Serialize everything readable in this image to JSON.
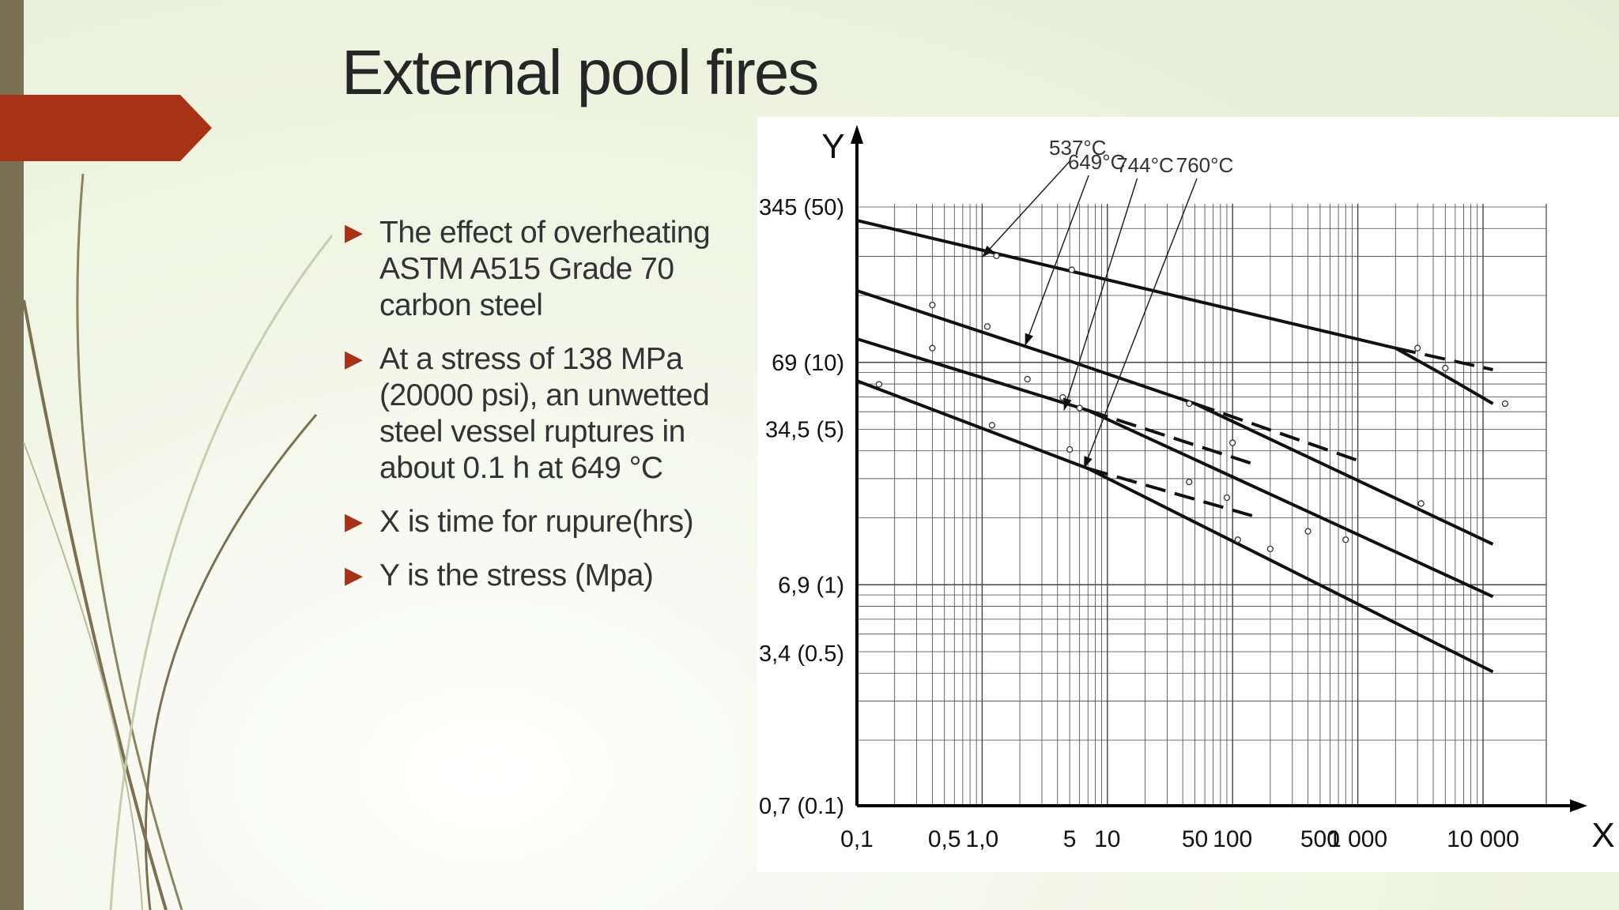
{
  "slide": {
    "title": "External pool fires",
    "bullets": [
      "The effect of overheating ASTM A515 Grade 70 carbon steel",
      "At a stress of 138 MPa (20000 psi), an unwetted steel vessel ruptures in about 0.1 h at 649 °C",
      "X is time for rupure(hrs)",
      "Y is the stress (Mpa)"
    ],
    "bullet_glyph": "▶",
    "colors": {
      "accent": "#a73216",
      "sidebar": "#7a7154",
      "text": "#333333"
    }
  },
  "chart_data": {
    "type": "line",
    "title": "",
    "xlabel": "X",
    "ylabel": "Y",
    "xscale": "log",
    "yscale": "log",
    "xlim": [
      0.1,
      20000
    ],
    "ylim": [
      0.7,
      345
    ],
    "grid": true,
    "x_ticks": [
      {
        "v": 0.1,
        "label": "0,1"
      },
      {
        "v": 0.5,
        "label": "0,5"
      },
      {
        "v": 1,
        "label": "1,0"
      },
      {
        "v": 5,
        "label": "5"
      },
      {
        "v": 10,
        "label": "10"
      },
      {
        "v": 50,
        "label": "50"
      },
      {
        "v": 100,
        "label": "100"
      },
      {
        "v": 500,
        "label": "500"
      },
      {
        "v": 1000,
        "label": "1 000"
      },
      {
        "v": 10000,
        "label": "10 000"
      }
    ],
    "y_ticks": [
      {
        "v": 345,
        "label": "345 (50)"
      },
      {
        "v": 69,
        "label": "69 (10)"
      },
      {
        "v": 34.5,
        "label": "34,5 (5)"
      },
      {
        "v": 6.9,
        "label": "6,9 (1)"
      },
      {
        "v": 3.4,
        "label": "3,4 (0.5)"
      },
      {
        "v": 0.7,
        "label": "0,7 (0.1)"
      }
    ],
    "series": [
      {
        "name": "537°C",
        "style": "solid",
        "points": [
          [
            0.1,
            300
          ],
          [
            2000,
            80
          ],
          [
            4500,
            62
          ],
          [
            12000,
            45
          ]
        ]
      },
      {
        "name": "537°C",
        "style": "dashed",
        "points": [
          [
            2000,
            80
          ],
          [
            12000,
            64
          ]
        ]
      },
      {
        "name": "649°C",
        "style": "solid",
        "points": [
          [
            0.1,
            145
          ],
          [
            5,
            70
          ],
          [
            50,
            45
          ],
          [
            12000,
            10.5
          ]
        ]
      },
      {
        "name": "649°C",
        "style": "dashed",
        "points": [
          [
            50,
            45
          ],
          [
            1000,
            25
          ]
        ]
      },
      {
        "name": "744°C",
        "style": "solid",
        "points": [
          [
            0.1,
            88
          ],
          [
            7,
            42
          ],
          [
            12000,
            6.1
          ]
        ]
      },
      {
        "name": "744°C",
        "style": "dashed",
        "points": [
          [
            7,
            42
          ],
          [
            150,
            24
          ]
        ]
      },
      {
        "name": "760°C",
        "style": "solid",
        "points": [
          [
            0.1,
            57
          ],
          [
            7,
            23
          ],
          [
            12000,
            2.8
          ]
        ]
      },
      {
        "name": "760°C",
        "style": "dashed",
        "points": [
          [
            7,
            23
          ],
          [
            150,
            14
          ]
        ]
      }
    ],
    "markers": [
      [
        1.3,
        208
      ],
      [
        5.2,
        180
      ],
      [
        0.4,
        125
      ],
      [
        1.1,
        100
      ],
      [
        0.4,
        80
      ],
      [
        2.3,
        58
      ],
      [
        4.4,
        48
      ],
      [
        6,
        43
      ],
      [
        0.15,
        55
      ],
      [
        1.2,
        36
      ],
      [
        5,
        28
      ],
      [
        45,
        45
      ],
      [
        100,
        30
      ],
      [
        45,
        20
      ],
      [
        90,
        17
      ],
      [
        110,
        11
      ],
      [
        200,
        10
      ],
      [
        400,
        12
      ],
      [
        800,
        11
      ],
      [
        3200,
        16
      ],
      [
        3000,
        80
      ],
      [
        5000,
        65
      ],
      [
        15000,
        45
      ]
    ],
    "annotations": [
      {
        "text": "537°C",
        "x": 5.8,
        "y": 520
      },
      {
        "text": "649°C",
        "x": 8.2,
        "y": 470
      },
      {
        "text": "744°C",
        "x": 20,
        "y": 445
      },
      {
        "text": "760°C",
        "x": 60,
        "y": 445
      }
    ]
  }
}
